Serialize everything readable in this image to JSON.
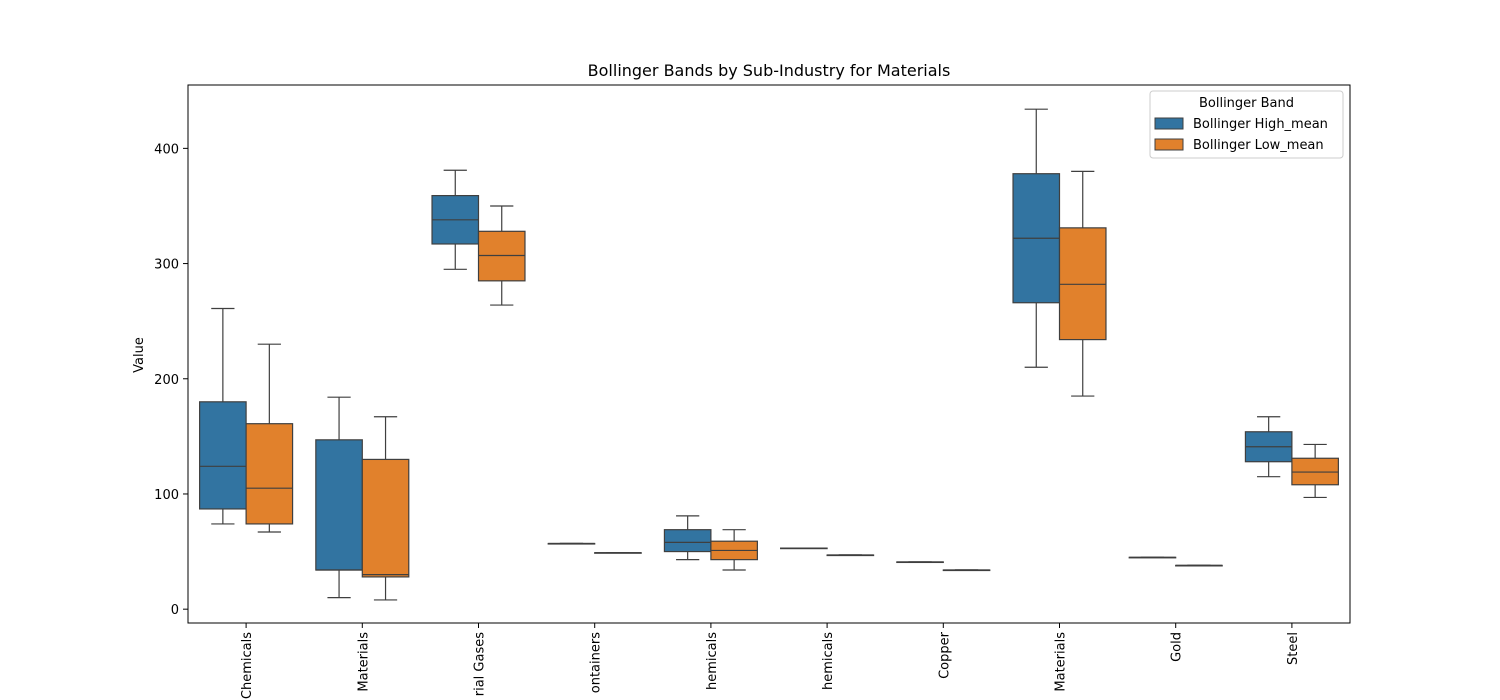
{
  "chart_data": {
    "type": "box",
    "title": "Bollinger Bands by Sub-Industry for Materials",
    "xlabel": "",
    "ylabel": "Value",
    "ylim": [
      -12,
      455
    ],
    "yticks": [
      0,
      100,
      200,
      300,
      400
    ],
    "grid": false,
    "categories": [
      "Chemicals",
      "Materials",
      "rial Gases",
      "ontainers",
      "hemicals",
      "hemicals",
      "Copper",
      "Materials",
      "Gold",
      "Steel"
    ],
    "legend": {
      "title": "Bollinger Band",
      "placement": "top-right"
    },
    "series": [
      {
        "name": "Bollinger High_mean",
        "color": "#3274a1",
        "boxes": [
          {
            "min": 74,
            "q1": 87,
            "median": 124,
            "q3": 180,
            "max": 261
          },
          {
            "min": 10,
            "q1": 34,
            "median": 34,
            "q3": 147,
            "max": 184
          },
          {
            "min": 295,
            "q1": 317,
            "median": 338,
            "q3": 359,
            "max": 381
          },
          {
            "min": 57,
            "q1": 57,
            "median": 57,
            "q3": 57,
            "max": 57
          },
          {
            "min": 43,
            "q1": 50,
            "median": 58,
            "q3": 69,
            "max": 81
          },
          {
            "min": 53,
            "q1": 53,
            "median": 53,
            "q3": 53,
            "max": 53
          },
          {
            "min": 41,
            "q1": 41,
            "median": 41,
            "q3": 41,
            "max": 41
          },
          {
            "min": 210,
            "q1": 266,
            "median": 322,
            "q3": 378,
            "max": 434
          },
          {
            "min": 45,
            "q1": 45,
            "median": 45,
            "q3": 45,
            "max": 45
          },
          {
            "min": 115,
            "q1": 128,
            "median": 141,
            "q3": 154,
            "max": 167
          }
        ]
      },
      {
        "name": "Bollinger Low_mean",
        "color": "#e1812c",
        "boxes": [
          {
            "min": 67,
            "q1": 74,
            "median": 105,
            "q3": 161,
            "max": 230
          },
          {
            "min": 8,
            "q1": 28,
            "median": 30,
            "q3": 130,
            "max": 167
          },
          {
            "min": 264,
            "q1": 285,
            "median": 307,
            "q3": 328,
            "max": 350
          },
          {
            "min": 49,
            "q1": 49,
            "median": 49,
            "q3": 49,
            "max": 49
          },
          {
            "min": 34,
            "q1": 43,
            "median": 51,
            "q3": 59,
            "max": 69
          },
          {
            "min": 47,
            "q1": 47,
            "median": 47,
            "q3": 47,
            "max": 47
          },
          {
            "min": 34,
            "q1": 34,
            "median": 34,
            "q3": 34,
            "max": 34
          },
          {
            "min": 185,
            "q1": 234,
            "median": 282,
            "q3": 331,
            "max": 380
          },
          {
            "min": 38,
            "q1": 38,
            "median": 38,
            "q3": 38,
            "max": 38
          },
          {
            "min": 97,
            "q1": 108,
            "median": 119,
            "q3": 131,
            "max": 143
          }
        ]
      }
    ]
  }
}
